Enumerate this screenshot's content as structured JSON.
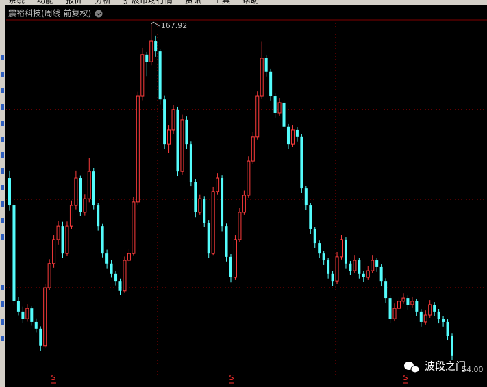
{
  "menu": [
    "系统",
    "功能",
    "报价",
    "分析",
    "扩展市场行情",
    "资讯",
    "工具",
    "帮助"
  ],
  "chart_data": {
    "type": "candlestick",
    "title": "震裕科技(周线 前复权)",
    "ylim": [
      48.65,
      173.27
    ],
    "ygrid": [
      138.9,
      108.4,
      78.4
    ],
    "grid": true,
    "up_color": "#ff3c3c",
    "down_color": "#54fcfc",
    "high_marker": 167.92,
    "low_marker": {
      "value": 54,
      "label": "54.00"
    },
    "signal_label": "S",
    "watermark": "波段之门",
    "ohlc": [
      [
        115.6,
        118.2,
        104.5,
        106.3
      ],
      [
        106.3,
        107.0,
        72.5,
        73.8
      ],
      [
        73.8,
        75.2,
        69.0,
        70.3
      ],
      [
        70.3,
        72.0,
        66.5,
        67.9
      ],
      [
        67.9,
        72.8,
        66.9,
        71.4
      ],
      [
        71.4,
        72.1,
        65.5,
        66.8
      ],
      [
        66.8,
        68.0,
        63.2,
        64.5
      ],
      [
        64.5,
        65.3,
        56.9,
        58.7
      ],
      [
        58.7,
        79.6,
        58.0,
        78.4
      ],
      [
        78.4,
        88.1,
        77.5,
        86.6
      ],
      [
        86.6,
        96.3,
        85.2,
        94.7
      ],
      [
        94.7,
        101.0,
        93.1,
        99.3
      ],
      [
        99.3,
        100.8,
        88.6,
        90.0
      ],
      [
        90.0,
        100.9,
        89.1,
        99.3
      ],
      [
        99.3,
        108.0,
        98.2,
        106.3
      ],
      [
        106.3,
        118.2,
        105.0,
        115.6
      ],
      [
        115.6,
        116.4,
        102.7,
        104.0
      ],
      [
        104.0,
        110.2,
        102.9,
        108.6
      ],
      [
        108.6,
        122.5,
        107.4,
        117.9
      ],
      [
        117.9,
        119.1,
        105.0,
        106.3
      ],
      [
        106.3,
        107.2,
        97.8,
        99.3
      ],
      [
        99.3,
        100.1,
        88.7,
        90.0
      ],
      [
        90.0,
        91.3,
        85.0,
        86.6
      ],
      [
        86.6,
        87.9,
        81.8,
        83.1
      ],
      [
        83.1,
        84.0,
        79.2,
        80.7
      ],
      [
        80.7,
        81.5,
        75.9,
        77.3
      ],
      [
        77.3,
        89.0,
        76.6,
        87.7
      ],
      [
        87.7,
        91.4,
        86.9,
        90.0
      ],
      [
        90.0,
        109.2,
        89.2,
        107.5
      ],
      [
        107.5,
        145.0,
        106.4,
        143.5
      ],
      [
        143.5,
        159.8,
        142.0,
        157.5
      ],
      [
        157.5,
        158.4,
        150.2,
        155.1
      ],
      [
        155.1,
        167.92,
        153.9,
        162.1
      ],
      [
        162.1,
        164.0,
        156.8,
        158.6
      ],
      [
        158.6,
        159.5,
        140.6,
        142.3
      ],
      [
        142.3,
        143.6,
        125.4,
        127.2
      ],
      [
        127.2,
        133.5,
        124.0,
        131.9
      ],
      [
        131.9,
        140.4,
        130.5,
        138.9
      ],
      [
        138.9,
        139.8,
        116.3,
        117.9
      ],
      [
        117.9,
        137.1,
        116.8,
        135.4
      ],
      [
        135.4,
        136.5,
        125.6,
        127.2
      ],
      [
        127.2,
        128.1,
        112.8,
        114.4
      ],
      [
        114.4,
        115.3,
        102.3,
        104.0
      ],
      [
        104.0,
        110.1,
        103.1,
        108.6
      ],
      [
        108.6,
        109.5,
        99.0,
        100.5
      ],
      [
        100.5,
        101.4,
        88.5,
        90.0
      ],
      [
        90.0,
        112.6,
        89.3,
        111.0
      ],
      [
        111.0,
        117.2,
        110.1,
        115.6
      ],
      [
        115.6,
        116.5,
        97.6,
        99.3
      ],
      [
        99.3,
        100.2,
        87.3,
        88.9
      ],
      [
        88.9,
        89.8,
        80.2,
        81.9
      ],
      [
        81.9,
        96.3,
        81.0,
        94.7
      ],
      [
        94.7,
        105.6,
        93.8,
        104.0
      ],
      [
        104.0,
        111.3,
        103.1,
        109.8
      ],
      [
        109.8,
        123.0,
        108.9,
        121.4
      ],
      [
        121.4,
        131.2,
        120.5,
        129.6
      ],
      [
        129.6,
        145.1,
        128.7,
        143.5
      ],
      [
        143.5,
        162.0,
        142.6,
        156.3
      ],
      [
        156.3,
        157.2,
        150.1,
        151.7
      ],
      [
        151.7,
        152.6,
        141.9,
        143.5
      ],
      [
        143.5,
        144.4,
        136.1,
        137.7
      ],
      [
        137.7,
        142.8,
        136.8,
        141.2
      ],
      [
        141.2,
        142.1,
        131.5,
        133.1
      ],
      [
        133.1,
        134.0,
        125.6,
        127.2
      ],
      [
        127.2,
        133.5,
        126.3,
        131.9
      ],
      [
        131.9,
        132.8,
        128.0,
        129.6
      ],
      [
        129.6,
        130.5,
        110.5,
        112.1
      ],
      [
        112.1,
        113.0,
        104.7,
        106.3
      ],
      [
        106.3,
        107.2,
        96.6,
        98.2
      ],
      [
        98.2,
        99.1,
        91.9,
        93.5
      ],
      [
        93.5,
        94.4,
        88.4,
        90.0
      ],
      [
        90.0,
        90.9,
        86.1,
        87.7
      ],
      [
        87.7,
        88.6,
        81.5,
        83.1
      ],
      [
        83.1,
        84.0,
        79.1,
        80.7
      ],
      [
        80.7,
        90.5,
        79.8,
        88.9
      ],
      [
        88.9,
        96.3,
        88.0,
        94.7
      ],
      [
        94.7,
        95.6,
        85.0,
        86.6
      ],
      [
        86.6,
        87.5,
        82.6,
        84.2
      ],
      [
        84.2,
        89.3,
        83.3,
        87.7
      ],
      [
        87.7,
        88.6,
        81.5,
        83.1
      ],
      [
        83.1,
        84.0,
        80.3,
        81.9
      ],
      [
        81.9,
        85.8,
        81.0,
        84.2
      ],
      [
        84.2,
        89.3,
        83.3,
        87.7
      ],
      [
        87.7,
        88.6,
        83.8,
        85.4
      ],
      [
        85.4,
        86.3,
        79.1,
        80.7
      ],
      [
        80.7,
        81.6,
        73.3,
        74.9
      ],
      [
        74.9,
        75.8,
        66.3,
        67.9
      ],
      [
        67.9,
        73.0,
        67.0,
        71.4
      ],
      [
        71.4,
        75.4,
        70.5,
        73.8
      ],
      [
        73.8,
        76.5,
        72.9,
        74.9
      ],
      [
        74.9,
        75.8,
        71.0,
        72.6
      ],
      [
        72.6,
        75.4,
        71.7,
        73.8
      ],
      [
        73.8,
        74.7,
        68.7,
        70.3
      ],
      [
        70.3,
        71.2,
        65.2,
        66.8
      ],
      [
        66.8,
        70.7,
        65.9,
        69.1
      ],
      [
        69.1,
        74.2,
        68.2,
        72.6
      ],
      [
        72.6,
        73.5,
        68.7,
        70.3
      ],
      [
        70.3,
        71.2,
        66.3,
        67.9
      ],
      [
        67.9,
        68.8,
        65.2,
        66.8
      ],
      [
        66.8,
        67.7,
        60.5,
        62.1
      ],
      [
        62.1,
        63.0,
        54.0,
        55.2
      ]
    ]
  }
}
